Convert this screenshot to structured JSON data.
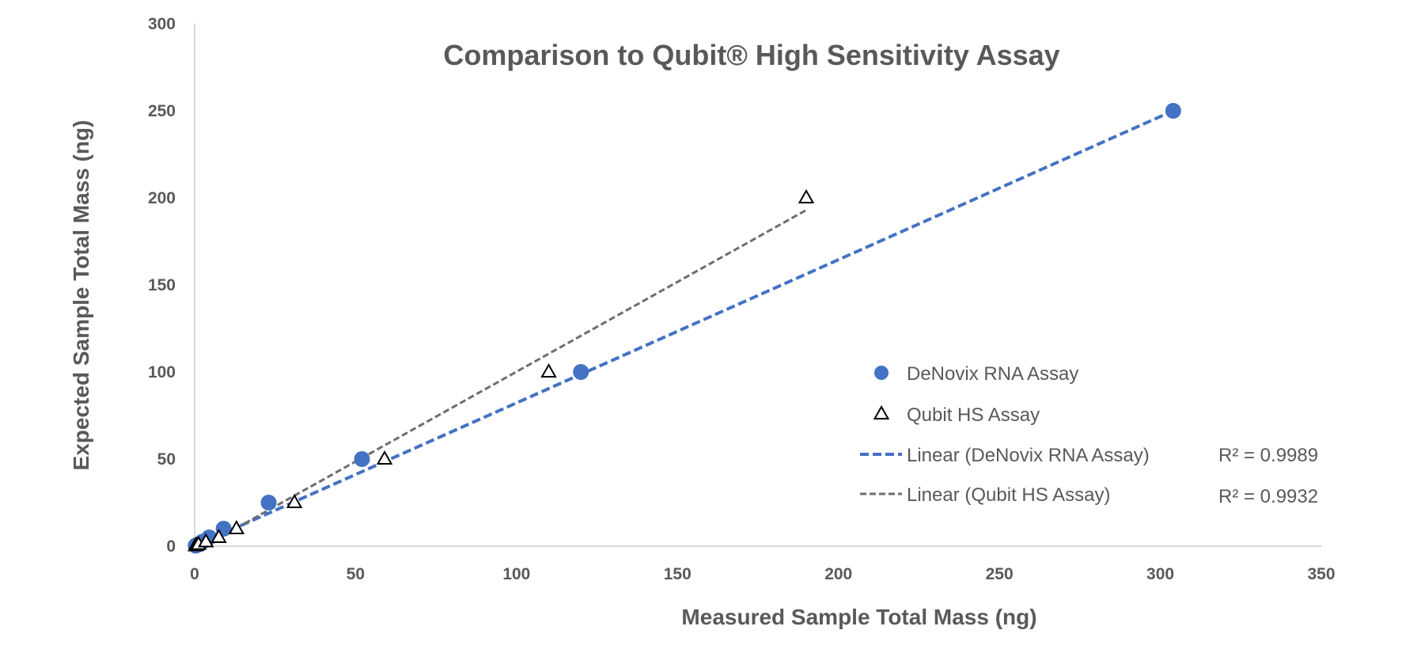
{
  "chart_data": {
    "type": "scatter",
    "title": "Comparison to Qubit® High Sensitivity Assay",
    "xlabel": "Measured Sample Total Mass (ng)",
    "ylabel": "Expected Sample Total Mass (ng)",
    "xlim": [
      0,
      350
    ],
    "ylim": [
      0,
      300
    ],
    "xticks": [
      "0",
      "50",
      "100",
      "150",
      "200",
      "250",
      "300",
      "350"
    ],
    "yticks": [
      "0",
      "50",
      "100",
      "150",
      "200",
      "250",
      "300"
    ],
    "grid": false,
    "legend_position": "right",
    "series": [
      {
        "name": "DeNovix RNA Assay",
        "marker": "circle",
        "color": "#4472C4",
        "points": [
          [
            0.3,
            0.25
          ],
          [
            0.6,
            0.5
          ],
          [
            1.2,
            1
          ],
          [
            2.4,
            2.5
          ],
          [
            4.5,
            5
          ],
          [
            9,
            10
          ],
          [
            23,
            25
          ],
          [
            52,
            50
          ],
          [
            120,
            100
          ],
          [
            304,
            250
          ]
        ]
      },
      {
        "name": "Qubit HS Assay",
        "marker": "triangle",
        "color": "#000000",
        "points": [
          [
            0.3,
            0.25
          ],
          [
            0.6,
            0.5
          ],
          [
            1.2,
            1
          ],
          [
            3.5,
            2.5
          ],
          [
            7.5,
            5
          ],
          [
            13,
            10
          ],
          [
            31,
            25
          ],
          [
            59,
            50
          ],
          [
            110,
            100
          ],
          [
            190,
            200
          ]
        ]
      }
    ],
    "trendlines": [
      {
        "name": "Linear (DeNovix RNA Assay)",
        "color": "#4472C4",
        "style": "dashed",
        "r2_label": "R² = 0.9989",
        "from": [
          0,
          0
        ],
        "to": [
          304,
          250
        ]
      },
      {
        "name": "Linear (Qubit HS Assay)",
        "color": "#6E6E6E",
        "style": "dashed",
        "r2_label": "R² = 0.9932",
        "from": [
          0,
          -3
        ],
        "to": [
          190,
          193
        ]
      }
    ]
  }
}
